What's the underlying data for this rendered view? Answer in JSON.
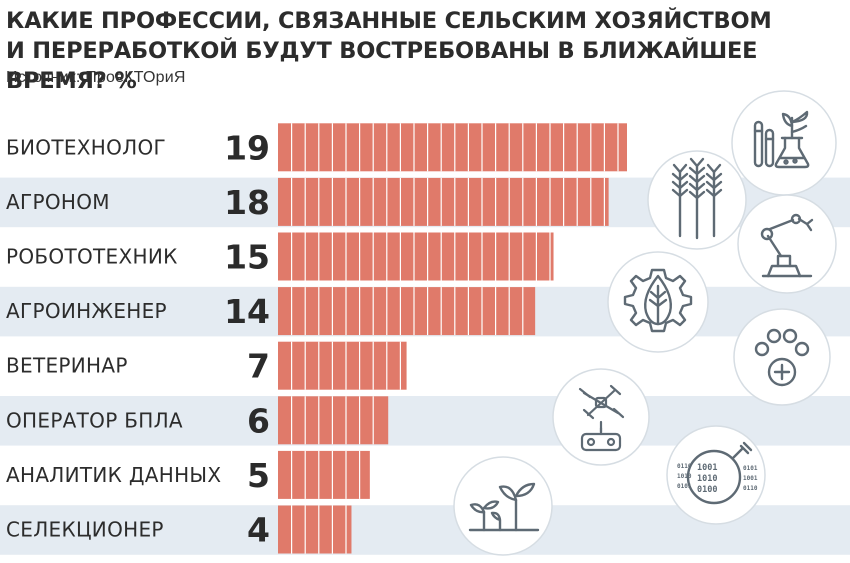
{
  "header": {
    "title_line1": "КАКИЕ ПРОФЕССИИ, СВЯЗАННЫЕ СЕЛЬСКИМ ХОЗЯЙСТВОМ",
    "title_line2": "И ПЕРЕРАБОТКОЙ БУДУТ ВОСТРЕБОВАНЫ В БЛИЖАЙШЕЕ ВРЕМЯ? %",
    "source": "Источник: ПроеКТОриЯ"
  },
  "colors": {
    "bar": "#e07a6a",
    "bar_stripe": "#ffffff",
    "row_band": "#e4ebf2",
    "icon_stroke": "#5e6a74",
    "icon_circle_fill": "#ffffff",
    "icon_circle_stroke": "#d6dde3"
  },
  "chart_data": {
    "type": "bar",
    "orientation": "horizontal",
    "title": "КАКИЕ ПРОФЕССИИ, СВЯЗАННЫЕ СЕЛЬСКИМ ХОЗЯЙСТВОМ И ПЕРЕРАБОТКОЙ БУДУТ ВОСТРЕБОВАНЫ В БЛИЖАЙШЕЕ ВРЕМЯ? %",
    "categories": [
      "БИОТЕХНОЛОГ",
      "АГРОНОМ",
      "РОБОТОТЕХНИК",
      "АГРОИНЖЕНЕР",
      "ВЕТЕРИНАР",
      "ОПЕРАТОР БПЛА",
      "АНАЛИТИК ДАННЫХ",
      "СЕЛЕКЦИОНЕР"
    ],
    "values": [
      19,
      18,
      15,
      14,
      7,
      6,
      5,
      4
    ],
    "unit": "%",
    "xlim": [
      0,
      19
    ],
    "grid": false,
    "legend": "none"
  },
  "icons": [
    {
      "name": "lab-flask-plant-icon"
    },
    {
      "name": "wheat-icon"
    },
    {
      "name": "robot-arm-icon"
    },
    {
      "name": "gear-leaf-icon"
    },
    {
      "name": "paw-medical-icon"
    },
    {
      "name": "drone-remote-icon"
    },
    {
      "name": "binary-magnifier-icon"
    },
    {
      "name": "sprouts-icon"
    }
  ]
}
